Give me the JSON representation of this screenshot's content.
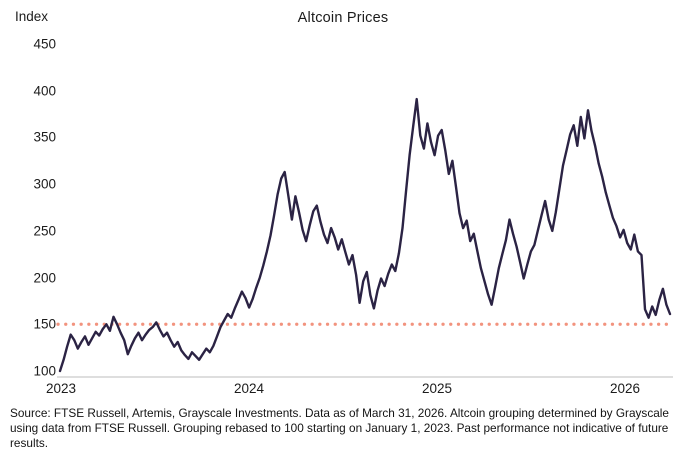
{
  "header": {
    "title": "Altcoin Prices",
    "y_axis_title": "Index"
  },
  "footer": {
    "source_text": "Source: FTSE Russell, Artemis, Grayscale Investments. Data as of March 31, 2026. Altcoin grouping determined by Grayscale using data from FTSE Russell. Grouping rebased to 100 starting on January 1, 2023. Past performance not indicative of future results."
  },
  "colors": {
    "line": "#2b2344",
    "reference_dotted_line": "#f2937e",
    "axis_line": "#c9c9c9",
    "text": "#1c1c1c"
  },
  "chart_data": {
    "type": "line",
    "title": "Altcoin Prices",
    "ylabel": "Index",
    "xlabel": "",
    "ylim": [
      100,
      450
    ],
    "y_ticks": [
      450,
      400,
      350,
      300,
      250,
      200,
      150,
      100
    ],
    "x_ticks": [
      "2023",
      "2024",
      "2025",
      "2026"
    ],
    "grid": false,
    "legend_position": "none",
    "reference_line": {
      "value": 150,
      "style": "dotted",
      "color": "#f2937e"
    },
    "x_range_note": "weekly values, January 2023 through March 31, 2026, rebased to 100",
    "series": [
      {
        "name": "Altcoin price index (rebased to 100 on Jan 1, 2023)",
        "values": [
          100,
          112,
          126,
          139,
          133,
          124,
          131,
          137,
          128,
          135,
          142,
          138,
          145,
          150,
          143,
          158,
          150,
          141,
          133,
          118,
          127,
          135,
          141,
          133,
          139,
          144,
          147,
          152,
          144,
          137,
          141,
          133,
          126,
          131,
          122,
          117,
          113,
          120,
          116,
          112,
          118,
          124,
          120,
          127,
          137,
          147,
          154,
          161,
          157,
          167,
          176,
          185,
          178,
          168,
          177,
          189,
          200,
          213,
          228,
          245,
          266,
          289,
          306,
          313,
          288,
          262,
          287,
          270,
          251,
          239,
          256,
          271,
          277,
          260,
          246,
          237,
          253,
          243,
          230,
          241,
          227,
          214,
          224,
          203,
          173,
          196,
          206,
          181,
          167,
          186,
          199,
          191,
          204,
          214,
          207,
          226,
          253,
          292,
          331,
          362,
          391,
          352,
          338,
          365,
          345,
          331,
          352,
          358,
          336,
          311,
          325,
          297,
          269,
          253,
          261,
          239,
          247,
          228,
          210,
          196,
          182,
          171,
          190,
          210,
          225,
          240,
          262,
          247,
          233,
          216,
          199,
          214,
          228,
          235,
          251,
          267,
          282,
          262,
          250,
          270,
          295,
          320,
          336,
          353,
          363,
          341,
          372,
          349,
          379,
          357,
          341,
          322,
          308,
          291,
          277,
          264,
          255,
          243,
          251,
          237,
          230,
          246,
          228,
          224,
          166,
          157,
          169,
          160,
          176,
          188,
          171,
          161
        ]
      }
    ]
  }
}
